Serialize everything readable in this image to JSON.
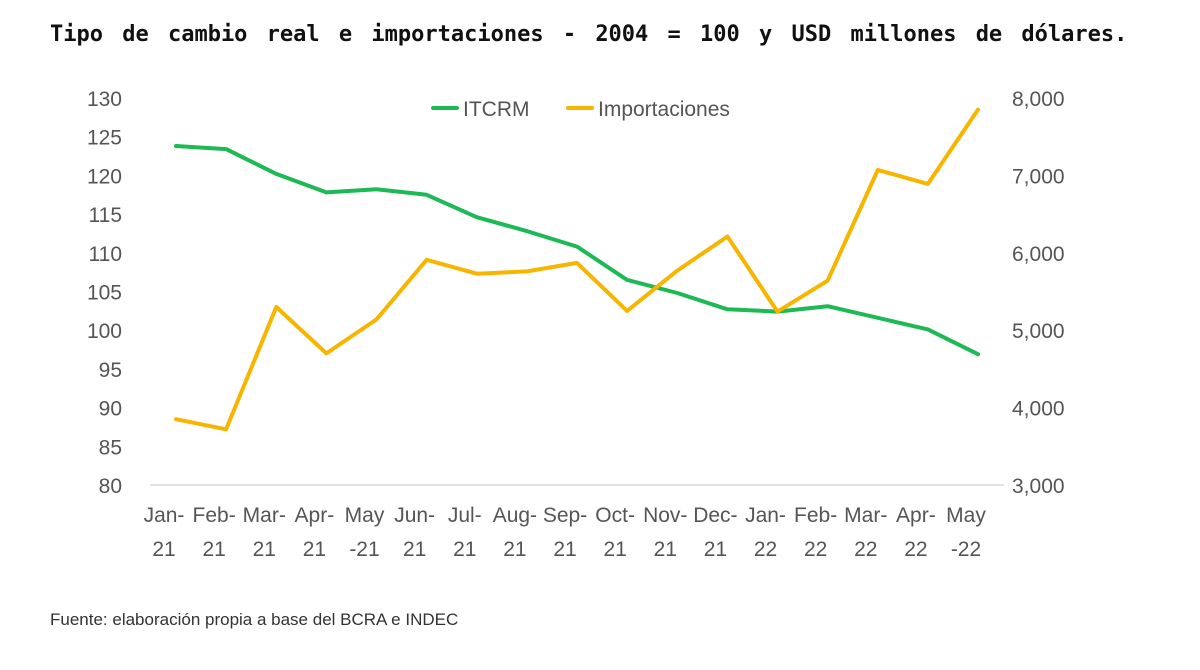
{
  "title": "Tipo de cambio real e importaciones - 2004 = 100 y USD millones de dólares.",
  "source_note": "Fuente: elaboración propia a base del BCRA e INDEC",
  "chart_data": {
    "type": "line",
    "categories": [
      [
        "Jan-",
        "21"
      ],
      [
        "Feb-",
        "21"
      ],
      [
        "Mar-",
        "21"
      ],
      [
        "Apr-",
        "21"
      ],
      [
        "May",
        "-21"
      ],
      [
        "Jun-",
        "21"
      ],
      [
        "Jul-",
        "21"
      ],
      [
        "Aug-",
        "21"
      ],
      [
        "Sep-",
        "21"
      ],
      [
        "Oct-",
        "21"
      ],
      [
        "Nov-",
        "21"
      ],
      [
        "Dec-",
        "21"
      ],
      [
        "Jan-",
        "22"
      ],
      [
        "Feb-",
        "22"
      ],
      [
        "Mar-",
        "22"
      ],
      [
        "Apr-",
        "22"
      ],
      [
        "May",
        "-22"
      ]
    ],
    "y_left": {
      "ticks": [
        "130",
        "125",
        "120",
        "115",
        "110",
        "105",
        "100",
        "95",
        "90",
        "85",
        "80"
      ],
      "range": [
        80,
        130
      ]
    },
    "y_right": {
      "ticks": [
        "8,000",
        "7,000",
        "6,000",
        "5,000",
        "4,000",
        "3,000"
      ],
      "range": [
        3000,
        8000
      ]
    },
    "legend_position": "top",
    "grid": false,
    "series": [
      {
        "name": "ITCRM",
        "axis": "left",
        "color": "#1db954",
        "values": [
          123.8,
          123.4,
          120.2,
          117.8,
          118.2,
          117.5,
          114.6,
          112.8,
          110.8,
          106.5,
          104.8,
          102.7,
          102.4,
          103.1,
          101.6,
          100.1,
          96.9
        ]
      },
      {
        "name": "Importaciones",
        "axis": "right",
        "color": "#f7b500",
        "values": [
          3850,
          3720,
          5300,
          4700,
          5140,
          5910,
          5730,
          5760,
          5870,
          5250,
          5770,
          6210,
          5240,
          5640,
          7070,
          6890,
          7850
        ]
      }
    ]
  }
}
